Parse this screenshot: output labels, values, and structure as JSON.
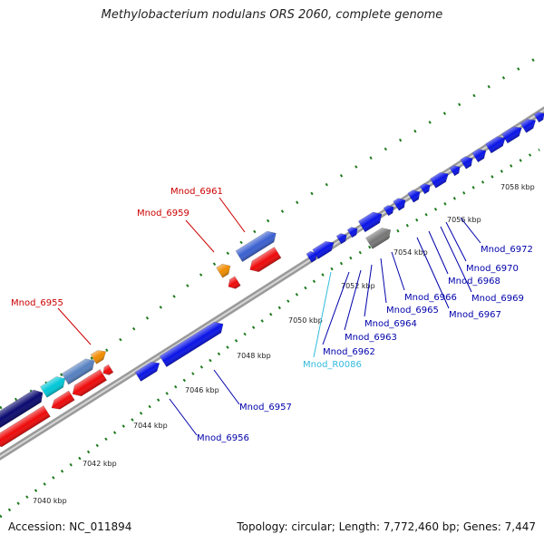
{
  "title": "Methylobacterium nodulans ORS 2060, complete genome",
  "footer": {
    "accession": "Accession: NC_011894",
    "topology": "Topology: circular; Length: 7,772,460 bp; Genes: 7,447"
  },
  "colors": {
    "forward_cds": "#0a14e6",
    "reverse_cds": "#ee0a0a",
    "rna": "#00c8d8",
    "pseudogene": "#777777",
    "highlight": "#f08c00",
    "backbone": "#9a9a9a",
    "ticks": "#1e7a1e",
    "label_forward": "#0000aa",
    "label_reverse": "#cc0000",
    "label_rna": "#33bbdd"
  },
  "ticks": [
    "7040 kbp",
    "7042 kbp",
    "7044 kbp",
    "7046 kbp",
    "7048 kbp",
    "7050 kbp",
    "7052 kbp",
    "7054 kbp",
    "7056 kbp",
    "7058 kbp"
  ],
  "labels": {
    "forward": [
      "Mnod_6956",
      "Mnod_6957",
      "Mnod_6962",
      "Mnod_6963",
      "Mnod_6964",
      "Mnod_6965",
      "Mnod_6966",
      "Mnod_6967",
      "Mnod_6968",
      "Mnod_6969",
      "Mnod_6970",
      "Mnod_6972"
    ],
    "rna": [
      "Mnod_R0086"
    ],
    "reverse": [
      "Mnod_6955",
      "Mnod_6959",
      "Mnod_6961"
    ]
  }
}
